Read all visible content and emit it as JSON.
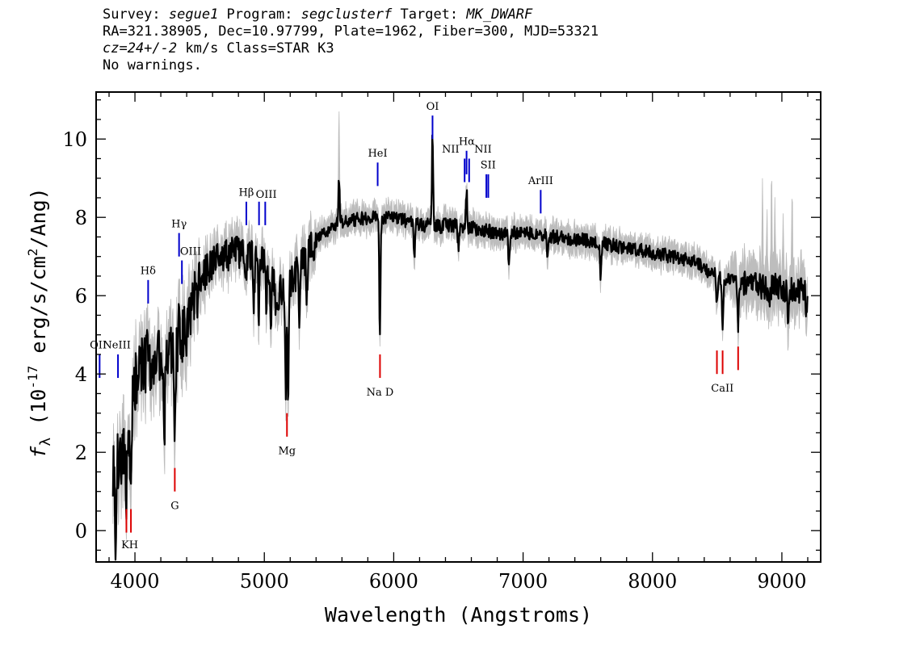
{
  "header": {
    "line1": {
      "survey_label": "Survey: ",
      "survey": "segue1",
      "program_label": " Program: ",
      "program": "segclusterf",
      "target_label": " Target: ",
      "target": "MK_DWARF"
    },
    "line2": "RA=321.38905, Dec=10.97799, Plate=1962, Fiber=300, MJD=53321",
    "line3": {
      "cz": "cz=24+/-2",
      "rest": " km/s Class=STAR K3"
    },
    "line4": "No warnings."
  },
  "chart_data": {
    "type": "line",
    "xlabel": "Wavelength (Angstroms)",
    "ylabel_parts": {
      "f": "f",
      "sub": "λ",
      "mid": " (10",
      "exp": "-17",
      "mid2": " erg/s/cm",
      "exp2": "2",
      "tail": "/Ang)"
    },
    "xlim": [
      3700,
      9300
    ],
    "ylim": [
      -0.8,
      11.2
    ],
    "x_ticks": [
      4000,
      5000,
      6000,
      7000,
      8000,
      9000
    ],
    "x_tick_labels": [
      "4000",
      "5000",
      "6000",
      "7000",
      "8000",
      "9000"
    ],
    "y_ticks": [
      0,
      2,
      4,
      6,
      8,
      10
    ],
    "y_tick_labels": [
      "0",
      "2",
      "4",
      "6",
      "8",
      "10"
    ],
    "colors": {
      "flux": "#000000",
      "error": "#bdbdbd",
      "emission": "#0000cc",
      "absorption": "#dd0000"
    },
    "continuum": [
      [
        3830,
        1.6
      ],
      [
        3930,
        2.0
      ],
      [
        4000,
        3.8
      ],
      [
        4050,
        4.2
      ],
      [
        4100,
        4.3
      ],
      [
        4200,
        4.4
      ],
      [
        4300,
        4.5
      ],
      [
        4400,
        5.2
      ],
      [
        4500,
        6.4
      ],
      [
        4600,
        6.8
      ],
      [
        4700,
        7.0
      ],
      [
        4800,
        7.1
      ],
      [
        4900,
        7.0
      ],
      [
        5000,
        6.9
      ],
      [
        5100,
        6.0
      ],
      [
        5200,
        6.3
      ],
      [
        5300,
        6.9
      ],
      [
        5400,
        7.4
      ],
      [
        5600,
        7.9
      ],
      [
        5800,
        8.0
      ],
      [
        6000,
        8.0
      ],
      [
        6200,
        7.8
      ],
      [
        6500,
        7.8
      ],
      [
        6800,
        7.6
      ],
      [
        7000,
        7.6
      ],
      [
        7500,
        7.4
      ],
      [
        8000,
        7.1
      ],
      [
        8300,
        6.9
      ],
      [
        8500,
        6.5
      ],
      [
        8700,
        6.3
      ],
      [
        9000,
        6.2
      ],
      [
        9200,
        6.1
      ]
    ],
    "features": [
      {
        "w": 3850,
        "v": -0.4
      },
      {
        "w": 3934,
        "v": 0.9
      },
      {
        "w": 3969,
        "v": 1.0
      },
      {
        "w": 4102,
        "v": 4.8
      },
      {
        "w": 4227,
        "v": 2.6
      },
      {
        "w": 4308,
        "v": 2.0
      },
      {
        "w": 4340,
        "v": 5.2
      },
      {
        "w": 4384,
        "v": 5.0
      },
      {
        "w": 4861,
        "v": 6.3
      },
      {
        "w": 4920,
        "v": 5.9
      },
      {
        "w": 4957,
        "v": 5.6
      },
      {
        "w": 5015,
        "v": 5.7
      },
      {
        "w": 5050,
        "v": 5.4
      },
      {
        "w": 5090,
        "v": 5.3
      },
      {
        "w": 5167,
        "v": 3.5
      },
      {
        "w": 5184,
        "v": 3.3
      },
      {
        "w": 5270,
        "v": 5.4
      },
      {
        "w": 5328,
        "v": 5.9
      },
      {
        "w": 5577,
        "v": 9.0
      },
      {
        "w": 5893,
        "v": 4.9
      },
      {
        "w": 6160,
        "v": 6.9
      },
      {
        "w": 6300,
        "v": 10.1
      },
      {
        "w": 6364,
        "v": 7.6
      },
      {
        "w": 6500,
        "v": 7.2
      },
      {
        "w": 6563,
        "v": 8.7
      },
      {
        "w": 6890,
        "v": 6.7
      },
      {
        "w": 7190,
        "v": 6.9
      },
      {
        "w": 7600,
        "v": 6.4
      },
      {
        "w": 8498,
        "v": 5.7
      },
      {
        "w": 8542,
        "v": 5.0
      },
      {
        "w": 8662,
        "v": 5.2
      },
      {
        "w": 8900,
        "v": 5.8
      },
      {
        "w": 9050,
        "v": 5.4
      },
      {
        "w": 9190,
        "v": 5.6
      }
    ],
    "error_spikes": [
      {
        "w": 5577,
        "v": 10.8
      },
      {
        "w": 6300,
        "v": 10.5
      },
      {
        "w": 8850,
        "v": 9.0
      },
      {
        "w": 8885,
        "v": 8.3
      },
      {
        "w": 8920,
        "v": 9.4
      },
      {
        "w": 8945,
        "v": 8.6
      },
      {
        "w": 9010,
        "v": 8.1
      },
      {
        "w": 9080,
        "v": 8.9
      }
    ],
    "emission_lines": [
      {
        "label": "OII",
        "x": 3727,
        "y1": 3.9,
        "y2": 4.5,
        "label_x": 3716,
        "label_y": 4.65
      },
      {
        "label": "NeIII",
        "x": 3869,
        "y1": 3.9,
        "y2": 4.5,
        "label_x": 3860,
        "label_y": 4.65
      },
      {
        "label": "Hδ",
        "x": 4102,
        "y1": 5.8,
        "y2": 6.4,
        "label_x": 4102,
        "label_y": 6.55
      },
      {
        "label": "Hγ",
        "x": 4341,
        "y1": 7.0,
        "y2": 7.6,
        "label_x": 4341,
        "label_y": 7.75
      },
      {
        "label": "OIII",
        "x": 4363,
        "y1": 6.3,
        "y2": 6.9,
        "label_x": 4430,
        "label_y": 7.05
      },
      {
        "label": "Hβ",
        "x": 4861,
        "y1": 7.8,
        "y2": 8.4,
        "label_x": 4861,
        "label_y": 8.55
      },
      {
        "label": "OIII",
        "x": 4959,
        "y1": 7.8,
        "y2": 8.4,
        "label_x": 5015,
        "label_y": 8.5
      },
      {
        "label": "",
        "x": 5007,
        "y1": 7.8,
        "y2": 8.4
      },
      {
        "label": "HeI",
        "x": 5876,
        "y1": 8.8,
        "y2": 9.4,
        "label_x": 5876,
        "label_y": 9.55
      },
      {
        "label": "OI",
        "x": 6300,
        "y1": 10.0,
        "y2": 10.6,
        "label_x": 6300,
        "label_y": 10.75
      },
      {
        "label": "NII",
        "x": 6548,
        "y1": 8.9,
        "y2": 9.5,
        "label_x": 6440,
        "label_y": 9.65
      },
      {
        "label": "Hα",
        "x": 6563,
        "y1": 9.1,
        "y2": 9.7,
        "label_x": 6565,
        "label_y": 9.85
      },
      {
        "label": "",
        "x": 6583,
        "y1": 8.9,
        "y2": 9.5
      },
      {
        "label": "NII",
        "x": 6583,
        "y1": 8.9,
        "y2": 9.5,
        "label_x": 6690,
        "label_y": 9.65,
        "no_line": true
      },
      {
        "label": "SII",
        "x": 6716,
        "y1": 8.5,
        "y2": 9.1,
        "label_x": 6730,
        "label_y": 9.25
      },
      {
        "label": "",
        "x": 6731,
        "y1": 8.5,
        "y2": 9.1
      },
      {
        "label": "ArIII",
        "x": 7136,
        "y1": 8.1,
        "y2": 8.7,
        "label_x": 7136,
        "label_y": 8.85
      }
    ],
    "absorption_lines": [
      {
        "label": "K",
        "x": 3934,
        "y1": 0.55,
        "y2": -0.05,
        "label_x": 3925,
        "label_y": -0.45
      },
      {
        "label": "H",
        "x": 3969,
        "y1": 0.55,
        "y2": -0.05,
        "label_x": 3990,
        "label_y": -0.45
      },
      {
        "label": "G",
        "x": 4308,
        "y1": 1.6,
        "y2": 1.0,
        "label_x": 4308,
        "label_y": 0.55
      },
      {
        "label": "Mg",
        "x": 5175,
        "y1": 3.0,
        "y2": 2.4,
        "label_x": 5175,
        "label_y": 1.95
      },
      {
        "label": "Na D",
        "x": 5894,
        "y1": 4.5,
        "y2": 3.9,
        "label_x": 5894,
        "label_y": 3.45
      },
      {
        "label": "CaII",
        "x": 8498,
        "y1": 4.6,
        "y2": 4.0,
        "label_x": 8540,
        "label_y": 3.55
      },
      {
        "label": "",
        "x": 8542,
        "y1": 4.6,
        "y2": 4.0
      },
      {
        "label": "",
        "x": 8662,
        "y1": 4.7,
        "y2": 4.1
      }
    ]
  }
}
